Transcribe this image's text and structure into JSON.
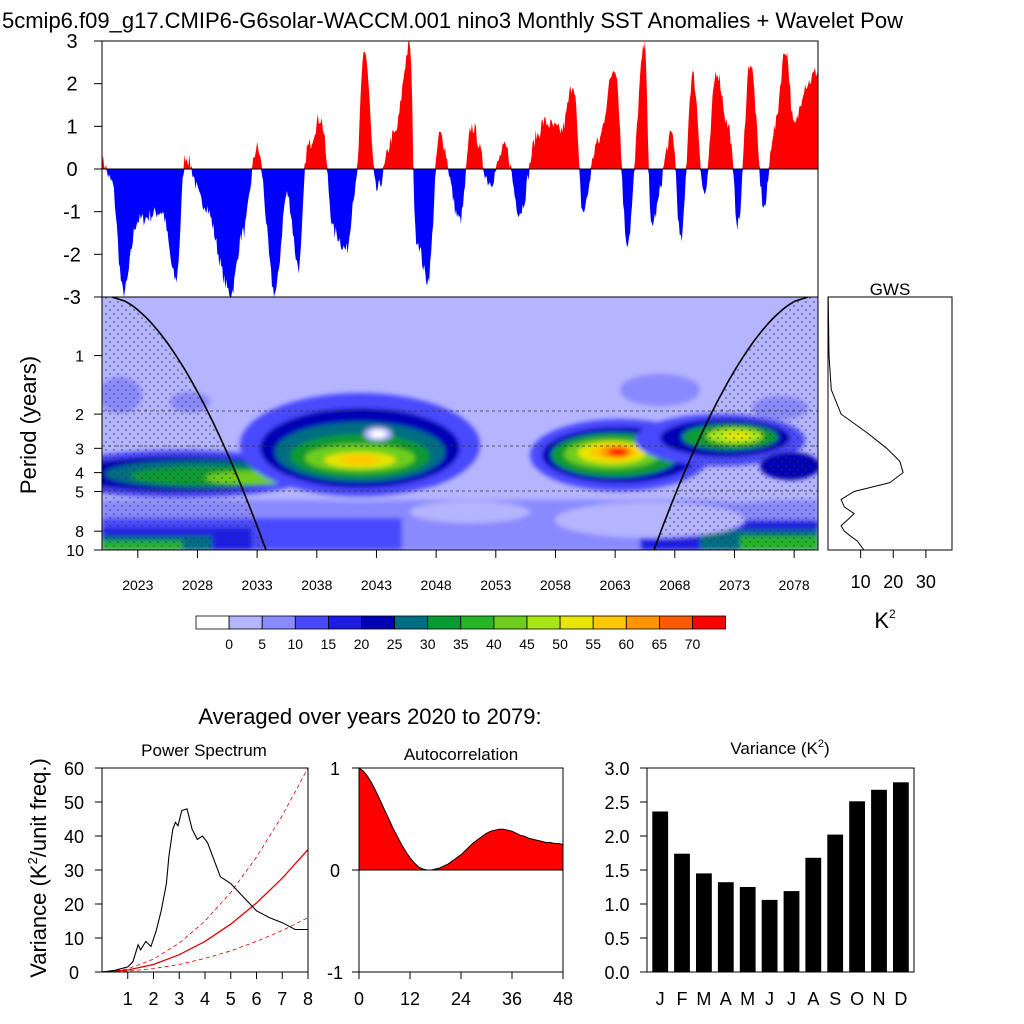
{
  "title": "5cmip6.f09_g17.CMIP6-G6solar-WACCM.001 nino3 Monthly SST Anomalies + Wavelet Pow",
  "colors": {
    "positive": "#ff0000",
    "negative": "#0000ff",
    "curve": "#e00000",
    "bar": "#000000",
    "scale": [
      "#ffffff",
      "#b4b4ff",
      "#8a8aff",
      "#4848ff",
      "#1c1ce6",
      "#0000b4",
      "#006e82",
      "#0a9a32",
      "#28b428",
      "#6ecd1e",
      "#a8e614",
      "#e6e600",
      "#ffc800",
      "#ff9600",
      "#ff5a00",
      "#ff0000"
    ]
  },
  "timeseries": {
    "ylim": [
      -3,
      3
    ],
    "yticks": [
      "3",
      "2",
      "1",
      "0",
      "-1",
      "-2",
      "-3"
    ],
    "ytick_values": [
      3,
      2,
      1,
      0,
      -1,
      -2,
      -3
    ]
  },
  "wavelet": {
    "ylabel": "Period (years)",
    "period_ticks": [
      "1",
      "2",
      "3",
      "4",
      "5",
      "8",
      "10"
    ],
    "period_values": [
      1,
      2,
      3,
      4,
      5,
      8,
      10
    ],
    "x_ticks": [
      "2023",
      "2028",
      "2033",
      "2038",
      "2043",
      "2048",
      "2053",
      "2058",
      "2063",
      "2068",
      "2073",
      "2078"
    ],
    "x_values": [
      2023,
      2028,
      2033,
      2038,
      2043,
      2048,
      2053,
      2058,
      2063,
      2068,
      2073,
      2078
    ],
    "xrange": [
      2020,
      2080
    ]
  },
  "gws": {
    "title": "GWS",
    "xticks": [
      "10",
      "20",
      "30"
    ],
    "xtick_values": [
      10,
      20,
      30
    ],
    "xlabel": "K",
    "xlabel_sup": "2"
  },
  "colorbar": {
    "labels": [
      "0",
      "5",
      "10",
      "15",
      "20",
      "25",
      "30",
      "35",
      "40",
      "45",
      "50",
      "55",
      "60",
      "65",
      "70"
    ]
  },
  "averaged_title": "Averaged over years 2020 to 2079:",
  "chart_data": [
    {
      "type": "line",
      "title": "Power Spectrum",
      "ylabel_main": "Variance (K",
      "ylabel_sup": "2",
      "ylabel_tail": "/unit freq.)",
      "xlim": [
        0,
        8
      ],
      "ylim": [
        0,
        60
      ],
      "xticks": [
        "1",
        "2",
        "3",
        "4",
        "5",
        "6",
        "7",
        "8"
      ],
      "xtick_values": [
        1,
        2,
        3,
        4,
        5,
        6,
        7,
        8
      ],
      "yticks": [
        "0",
        "10",
        "20",
        "30",
        "40",
        "50",
        "60"
      ],
      "ytick_values": [
        0,
        10,
        20,
        30,
        40,
        50,
        60
      ],
      "series": [
        {
          "name": "spectrum",
          "x": [
            0,
            0.5,
            1,
            1.2,
            1.4,
            1.5,
            1.7,
            1.9,
            2.1,
            2.3,
            2.5,
            2.6,
            2.75,
            2.85,
            2.95,
            3.1,
            3.3,
            3.5,
            3.7,
            3.9,
            4.1,
            4.3,
            4.6,
            5.0,
            5.5,
            6.0,
            6.5,
            7.0,
            7.5,
            8.0
          ],
          "y": [
            0,
            0.5,
            1.5,
            3,
            8,
            6.5,
            9,
            7.5,
            12,
            18,
            26,
            34,
            42,
            44,
            43,
            47.5,
            48,
            42,
            39,
            40,
            38,
            34,
            28,
            26,
            22,
            18,
            16,
            14.5,
            12.5,
            12.5
          ]
        },
        {
          "name": "red-noise",
          "x": [
            0,
            1,
            2,
            3,
            4,
            5,
            6,
            7,
            8
          ],
          "y": [
            0,
            0.6,
            2.2,
            5.1,
            9.0,
            14.1,
            20.3,
            27.6,
            36
          ]
        },
        {
          "name": "red-noise-upper",
          "x": [
            0,
            1,
            2,
            3,
            4,
            5,
            6,
            7,
            8
          ],
          "y": [
            0,
            0.9,
            3.8,
            8.5,
            15.0,
            23.4,
            33.8,
            46.0,
            60.0
          ]
        },
        {
          "name": "red-noise-lower",
          "x": [
            0,
            1,
            2,
            3,
            4,
            5,
            6,
            7,
            8
          ],
          "y": [
            0,
            0.25,
            1.0,
            2.2,
            4.0,
            6.2,
            9.0,
            12.2,
            16.0
          ]
        }
      ]
    },
    {
      "type": "area",
      "title": "Autocorrelation",
      "xlim": [
        0,
        48
      ],
      "ylim": [
        -1,
        1
      ],
      "xticks": [
        "0",
        "12",
        "24",
        "36",
        "48"
      ],
      "xtick_values": [
        0,
        12,
        24,
        36,
        48
      ],
      "yticks": [
        "1",
        "0",
        "-1"
      ],
      "ytick_values": [
        1,
        0,
        -1
      ],
      "x": [
        0,
        1,
        2,
        3,
        4,
        5,
        6,
        7,
        8,
        9,
        10,
        11,
        12,
        13,
        14,
        15,
        16,
        17,
        18,
        19,
        20,
        21,
        22,
        23,
        24,
        25,
        26,
        27,
        28,
        29,
        30,
        31,
        32,
        33,
        34,
        35,
        36,
        37,
        38,
        39,
        40,
        41,
        42,
        43,
        44,
        45,
        46,
        47,
        48
      ],
      "y": [
        1.0,
        0.97,
        0.92,
        0.85,
        0.77,
        0.68,
        0.59,
        0.5,
        0.41,
        0.33,
        0.25,
        0.18,
        0.12,
        0.07,
        0.03,
        0.01,
        0.0,
        0.0,
        0.01,
        0.02,
        0.04,
        0.06,
        0.09,
        0.12,
        0.15,
        0.19,
        0.23,
        0.27,
        0.3,
        0.33,
        0.36,
        0.38,
        0.39,
        0.4,
        0.4,
        0.39,
        0.38,
        0.36,
        0.34,
        0.33,
        0.31,
        0.3,
        0.29,
        0.28,
        0.27,
        0.27,
        0.26,
        0.26,
        0.25
      ]
    },
    {
      "type": "bar",
      "title": "Variance (K",
      "title_sup": "2",
      "title_tail": ")",
      "ylim": [
        0,
        3
      ],
      "yticks": [
        "0.0",
        "0.5",
        "1.0",
        "1.5",
        "2.0",
        "2.5",
        "3.0"
      ],
      "ytick_values": [
        0,
        0.5,
        1,
        1.5,
        2,
        2.5,
        3
      ],
      "categories": [
        "J",
        "F",
        "M",
        "A",
        "M",
        "J",
        "J",
        "A",
        "S",
        "O",
        "N",
        "D"
      ],
      "values": [
        2.36,
        1.74,
        1.45,
        1.32,
        1.25,
        1.06,
        1.19,
        1.68,
        2.02,
        2.51,
        2.68,
        2.79
      ]
    }
  ]
}
